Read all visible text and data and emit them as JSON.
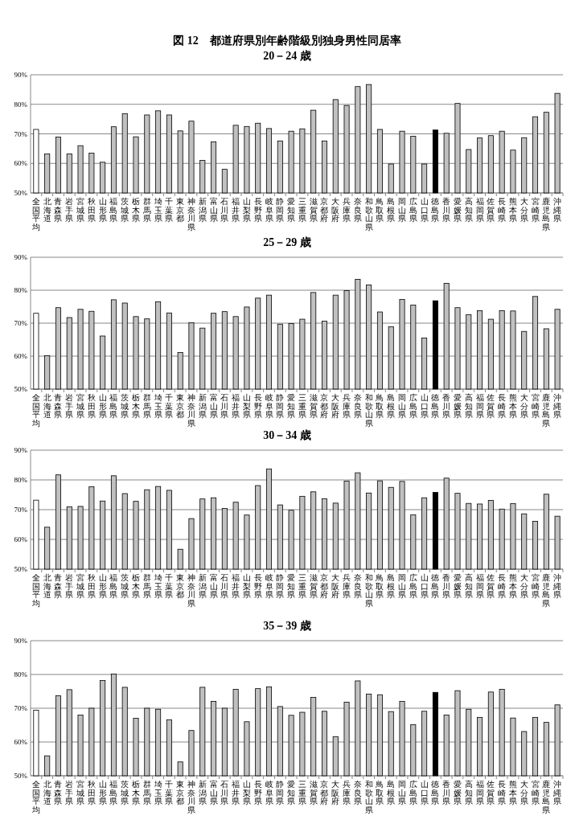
{
  "chart_data": [
    {
      "type": "bar",
      "title": "図 12　都道府県別年齢階級別独身男性同居率",
      "subtitle": "20－24 歳",
      "categories": [
        "全国平均",
        "北海道",
        "青森県",
        "岩手県",
        "宮城県",
        "秋田県",
        "山形県",
        "福島県",
        "茨城県",
        "栃木県",
        "群馬県",
        "埼玉県",
        "千葉県",
        "東京都",
        "神奈川県",
        "新潟県",
        "富山県",
        "石川県",
        "福井県",
        "山梨県",
        "長野県",
        "岐阜県",
        "静岡県",
        "愛知県",
        "三重県",
        "滋賀県",
        "京都府",
        "大阪府",
        "兵庫県",
        "奈良県",
        "和歌山県",
        "鳥取県",
        "島根県",
        "岡山県",
        "広島県",
        "山口県",
        "徳島県",
        "香川県",
        "愛媛県",
        "高知県",
        "福岡県",
        "佐賀県",
        "長崎県",
        "熊本県",
        "大分県",
        "宮崎県",
        "鹿児島県",
        "沖縄県"
      ],
      "values": [
        71.5,
        63.2,
        68.9,
        63.2,
        66.0,
        63.5,
        60.4,
        72.4,
        76.8,
        69.0,
        76.4,
        77.8,
        76.4,
        71.0,
        74.3,
        61.0,
        67.3,
        58.0,
        72.9,
        72.5,
        73.6,
        71.8,
        67.6,
        70.9,
        71.7,
        78.0,
        67.6,
        81.6,
        79.6,
        86.0,
        86.7,
        71.5,
        59.8,
        70.9,
        69.2,
        59.8,
        71.3,
        70.2,
        80.3,
        64.7,
        68.6,
        69.4,
        70.9,
        64.5,
        68.7,
        75.8,
        77.3,
        83.7
      ],
      "colors": [
        "#ffffff",
        "#c0c0c0",
        "#c0c0c0",
        "#c0c0c0",
        "#c0c0c0",
        "#c0c0c0",
        "#c0c0c0",
        "#c0c0c0",
        "#c0c0c0",
        "#c0c0c0",
        "#c0c0c0",
        "#c0c0c0",
        "#c0c0c0",
        "#c0c0c0",
        "#c0c0c0",
        "#c0c0c0",
        "#c0c0c0",
        "#c0c0c0",
        "#c0c0c0",
        "#c0c0c0",
        "#c0c0c0",
        "#c0c0c0",
        "#c0c0c0",
        "#c0c0c0",
        "#c0c0c0",
        "#c0c0c0",
        "#c0c0c0",
        "#c0c0c0",
        "#c0c0c0",
        "#c0c0c0",
        "#c0c0c0",
        "#c0c0c0",
        "#c0c0c0",
        "#c0c0c0",
        "#c0c0c0",
        "#c0c0c0",
        "#000000",
        "#c0c0c0",
        "#c0c0c0",
        "#c0c0c0",
        "#c0c0c0",
        "#c0c0c0",
        "#c0c0c0",
        "#c0c0c0",
        "#c0c0c0",
        "#c0c0c0",
        "#c0c0c0",
        "#c0c0c0"
      ],
      "ylim": [
        50,
        90
      ],
      "yticks": [
        {
          "value": 50,
          "label": "50%"
        },
        {
          "value": 60,
          "label": "60%"
        },
        {
          "value": 70,
          "label": "70%"
        },
        {
          "value": 80,
          "label": "80%"
        },
        {
          "value": 90,
          "label": "90%"
        }
      ],
      "grid": "y"
    },
    {
      "type": "bar",
      "title": "25－29 歳",
      "categories": [
        "全国平均",
        "北海道",
        "青森県",
        "岩手県",
        "宮城県",
        "秋田県",
        "山形県",
        "福島県",
        "茨城県",
        "栃木県",
        "群馬県",
        "埼玉県",
        "千葉県",
        "東京都",
        "神奈川県",
        "新潟県",
        "富山県",
        "石川県",
        "福井県",
        "山梨県",
        "長野県",
        "岐阜県",
        "静岡県",
        "愛知県",
        "三重県",
        "滋賀県",
        "京都府",
        "大阪府",
        "兵庫県",
        "奈良県",
        "和歌山県",
        "鳥取県",
        "島根県",
        "岡山県",
        "広島県",
        "山口県",
        "徳島県",
        "香川県",
        "愛媛県",
        "高知県",
        "福岡県",
        "佐賀県",
        "長崎県",
        "熊本県",
        "大分県",
        "宮崎県",
        "鹿児島県",
        "沖縄県"
      ],
      "values": [
        73.0,
        60.1,
        74.7,
        71.7,
        74.2,
        73.6,
        66.1,
        77.1,
        76.1,
        72.0,
        71.3,
        76.5,
        73.1,
        61.1,
        70.1,
        68.5,
        73.0,
        73.5,
        72.0,
        74.9,
        77.6,
        78.5,
        69.7,
        69.9,
        71.2,
        79.3,
        70.6,
        78.5,
        79.9,
        83.3,
        81.6,
        73.4,
        68.9,
        77.2,
        75.5,
        65.5,
        76.8,
        82.1,
        74.7,
        72.6,
        73.8,
        71.2,
        73.8,
        73.7,
        67.5,
        78.1,
        68.3,
        74.2
      ],
      "colors": [
        "#ffffff",
        "#c0c0c0",
        "#c0c0c0",
        "#c0c0c0",
        "#c0c0c0",
        "#c0c0c0",
        "#c0c0c0",
        "#c0c0c0",
        "#c0c0c0",
        "#c0c0c0",
        "#c0c0c0",
        "#c0c0c0",
        "#c0c0c0",
        "#c0c0c0",
        "#c0c0c0",
        "#c0c0c0",
        "#c0c0c0",
        "#c0c0c0",
        "#c0c0c0",
        "#c0c0c0",
        "#c0c0c0",
        "#c0c0c0",
        "#c0c0c0",
        "#c0c0c0",
        "#c0c0c0",
        "#c0c0c0",
        "#c0c0c0",
        "#c0c0c0",
        "#c0c0c0",
        "#c0c0c0",
        "#c0c0c0",
        "#c0c0c0",
        "#c0c0c0",
        "#c0c0c0",
        "#c0c0c0",
        "#c0c0c0",
        "#000000",
        "#c0c0c0",
        "#c0c0c0",
        "#c0c0c0",
        "#c0c0c0",
        "#c0c0c0",
        "#c0c0c0",
        "#c0c0c0",
        "#c0c0c0",
        "#c0c0c0",
        "#c0c0c0",
        "#c0c0c0"
      ],
      "ylim": [
        50,
        90
      ],
      "yticks": [
        {
          "value": 50,
          "label": "50%"
        },
        {
          "value": 60,
          "label": "60%"
        },
        {
          "value": 70,
          "label": "70%"
        },
        {
          "value": 80,
          "label": "80%"
        },
        {
          "value": 90,
          "label": "90%"
        }
      ],
      "grid": "y"
    },
    {
      "type": "bar",
      "title": "30－34 歳",
      "categories": [
        "全国平均",
        "北海道",
        "青森県",
        "岩手県",
        "宮城県",
        "秋田県",
        "山形県",
        "福島県",
        "茨城県",
        "栃木県",
        "群馬県",
        "埼玉県",
        "千葉県",
        "東京都",
        "神奈川県",
        "新潟県",
        "富山県",
        "石川県",
        "福井県",
        "山梨県",
        "長野県",
        "岐阜県",
        "静岡県",
        "愛知県",
        "三重県",
        "滋賀県",
        "京都府",
        "大阪府",
        "兵庫県",
        "奈良県",
        "和歌山県",
        "鳥取県",
        "島根県",
        "岡山県",
        "広島県",
        "山口県",
        "徳島県",
        "香川県",
        "愛媛県",
        "高知県",
        "福岡県",
        "佐賀県",
        "長崎県",
        "熊本県",
        "大分県",
        "宮崎県",
        "鹿児島県",
        "沖縄県"
      ],
      "values": [
        73.2,
        64.1,
        81.7,
        71.0,
        71.1,
        77.7,
        72.9,
        81.4,
        75.4,
        72.8,
        76.7,
        77.8,
        76.5,
        56.7,
        67.0,
        73.6,
        74.0,
        70.4,
        72.5,
        68.2,
        78.1,
        83.7,
        71.6,
        69.8,
        74.5,
        76.0,
        73.7,
        72.2,
        79.6,
        82.4,
        75.6,
        79.7,
        77.5,
        79.5,
        68.3,
        74.0,
        75.8,
        80.6,
        75.5,
        72.1,
        71.9,
        73.1,
        70.2,
        72.0,
        68.6,
        66.1,
        75.2,
        67.8
      ],
      "colors": [
        "#ffffff",
        "#c0c0c0",
        "#c0c0c0",
        "#c0c0c0",
        "#c0c0c0",
        "#c0c0c0",
        "#c0c0c0",
        "#c0c0c0",
        "#c0c0c0",
        "#c0c0c0",
        "#c0c0c0",
        "#c0c0c0",
        "#c0c0c0",
        "#c0c0c0",
        "#c0c0c0",
        "#c0c0c0",
        "#c0c0c0",
        "#c0c0c0",
        "#c0c0c0",
        "#c0c0c0",
        "#c0c0c0",
        "#c0c0c0",
        "#c0c0c0",
        "#c0c0c0",
        "#c0c0c0",
        "#c0c0c0",
        "#c0c0c0",
        "#c0c0c0",
        "#c0c0c0",
        "#c0c0c0",
        "#c0c0c0",
        "#c0c0c0",
        "#c0c0c0",
        "#c0c0c0",
        "#c0c0c0",
        "#c0c0c0",
        "#000000",
        "#c0c0c0",
        "#c0c0c0",
        "#c0c0c0",
        "#c0c0c0",
        "#c0c0c0",
        "#c0c0c0",
        "#c0c0c0",
        "#c0c0c0",
        "#c0c0c0",
        "#c0c0c0",
        "#c0c0c0"
      ],
      "ylim": [
        50,
        90
      ],
      "yticks": [
        {
          "value": 50,
          "label": "50%"
        },
        {
          "value": 60,
          "label": "60%"
        },
        {
          "value": 70,
          "label": "70%"
        },
        {
          "value": 80,
          "label": "80%"
        },
        {
          "value": 90,
          "label": "90%"
        }
      ],
      "grid": "y"
    },
    {
      "type": "bar",
      "title": "35－39 歳",
      "categories": [
        "全国平均",
        "北海道",
        "青森県",
        "岩手県",
        "宮城県",
        "秋田県",
        "山形県",
        "福島県",
        "茨城県",
        "栃木県",
        "群馬県",
        "埼玉県",
        "千葉県",
        "東京都",
        "神奈川県",
        "新潟県",
        "富山県",
        "石川県",
        "福井県",
        "山梨県",
        "長野県",
        "岐阜県",
        "静岡県",
        "愛知県",
        "三重県",
        "滋賀県",
        "京都府",
        "大阪府",
        "兵庫県",
        "奈良県",
        "和歌山県",
        "鳥取県",
        "島根県",
        "岡山県",
        "広島県",
        "山口県",
        "徳島県",
        "香川県",
        "愛媛県",
        "高知県",
        "福岡県",
        "佐賀県",
        "長崎県",
        "熊本県",
        "大分県",
        "宮崎県",
        "鹿児島県",
        "沖縄県"
      ],
      "values": [
        69.4,
        55.9,
        73.7,
        75.5,
        68.0,
        70.0,
        78.2,
        80.1,
        76.2,
        67.0,
        70.0,
        69.7,
        66.6,
        54.1,
        63.4,
        76.2,
        72.0,
        70.0,
        75.6,
        66.0,
        75.8,
        76.3,
        70.5,
        67.9,
        68.8,
        73.2,
        69.1,
        61.6,
        71.8,
        78.1,
        74.2,
        74.0,
        69.0,
        72.0,
        65.1,
        69.1,
        74.7,
        68.0,
        75.2,
        69.7,
        67.3,
        74.8,
        75.6,
        67.1,
        63.1,
        67.3,
        65.8,
        71.0
      ],
      "colors": [
        "#ffffff",
        "#c0c0c0",
        "#c0c0c0",
        "#c0c0c0",
        "#c0c0c0",
        "#c0c0c0",
        "#c0c0c0",
        "#c0c0c0",
        "#c0c0c0",
        "#c0c0c0",
        "#c0c0c0",
        "#c0c0c0",
        "#c0c0c0",
        "#c0c0c0",
        "#c0c0c0",
        "#c0c0c0",
        "#c0c0c0",
        "#c0c0c0",
        "#c0c0c0",
        "#c0c0c0",
        "#c0c0c0",
        "#c0c0c0",
        "#c0c0c0",
        "#c0c0c0",
        "#c0c0c0",
        "#c0c0c0",
        "#c0c0c0",
        "#c0c0c0",
        "#c0c0c0",
        "#c0c0c0",
        "#c0c0c0",
        "#c0c0c0",
        "#c0c0c0",
        "#c0c0c0",
        "#c0c0c0",
        "#c0c0c0",
        "#000000",
        "#c0c0c0",
        "#c0c0c0",
        "#c0c0c0",
        "#c0c0c0",
        "#c0c0c0",
        "#c0c0c0",
        "#c0c0c0",
        "#c0c0c0",
        "#c0c0c0",
        "#c0c0c0",
        "#c0c0c0"
      ],
      "ylim": [
        50,
        90
      ],
      "yticks": [
        {
          "value": 50,
          "label": "50%"
        },
        {
          "value": 60,
          "label": "60%"
        },
        {
          "value": 70,
          "label": "70%"
        },
        {
          "value": 80,
          "label": "80%"
        },
        {
          "value": 90,
          "label": "90%"
        }
      ],
      "grid": "y"
    }
  ]
}
